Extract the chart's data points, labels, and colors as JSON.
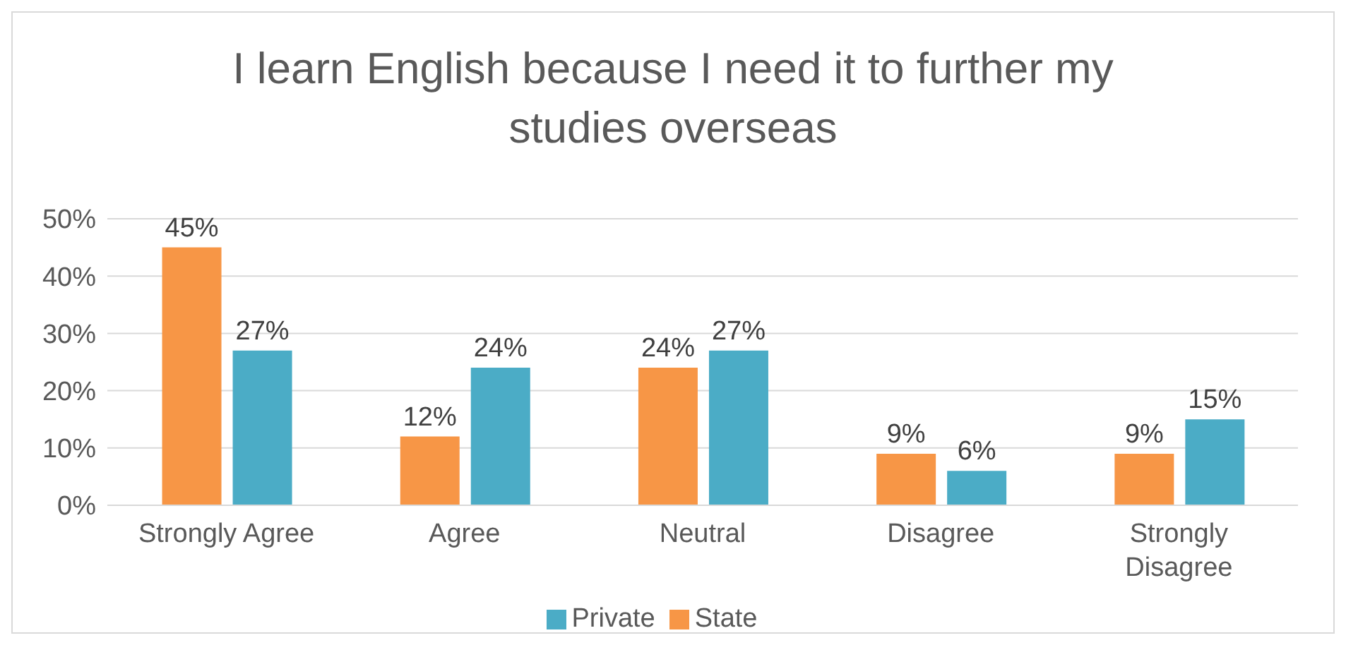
{
  "chart_data": {
    "type": "bar",
    "title": "I learn English because I need it to further my studies overseas",
    "categories": [
      "Strongly Agree",
      "Agree",
      "Neutral",
      "Disagree",
      "Strongly Disagree"
    ],
    "series": [
      {
        "name": "State",
        "color": "#f79646",
        "values": [
          45,
          12,
          24,
          9,
          9
        ],
        "value_labels": [
          "45%",
          "12%",
          "24%",
          "9%",
          "9%"
        ]
      },
      {
        "name": "Private",
        "color": "#4bacc6",
        "values": [
          27,
          24,
          27,
          6,
          15
        ],
        "value_labels": [
          "27%",
          "24%",
          "27%",
          "6%",
          "15%"
        ]
      }
    ],
    "ylim": [
      0,
      50
    ],
    "yticks": [
      {
        "value": 0,
        "label": "0%"
      },
      {
        "value": 10,
        "label": "10%"
      },
      {
        "value": 20,
        "label": "20%"
      },
      {
        "value": 30,
        "label": "30%"
      },
      {
        "value": 40,
        "label": "40%"
      },
      {
        "value": 50,
        "label": "50%"
      }
    ],
    "grid": "y",
    "legend": "bottom"
  }
}
